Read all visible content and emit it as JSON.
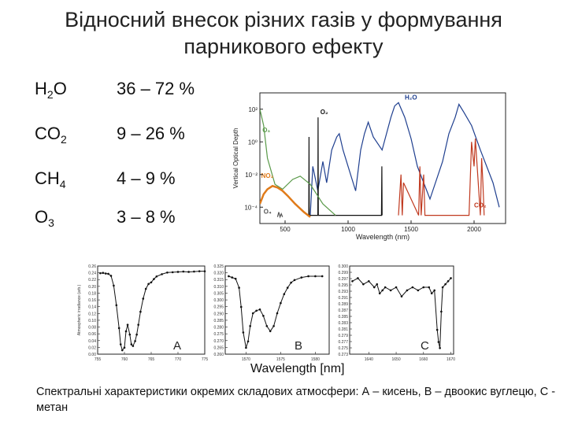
{
  "title": {
    "line1": "Відносний внесок різних газів у формування",
    "line2": "парникового ефекту"
  },
  "gases": [
    {
      "name": "H",
      "sub": "2",
      "tail": "O",
      "range": "36 – 72 %"
    },
    {
      "name": "CO",
      "sub": "2",
      "tail": "",
      "range": "9 – 26 %"
    },
    {
      "name": "CH",
      "sub": "4",
      "tail": "",
      "range": "4 – 9 %"
    },
    {
      "name": "O",
      "sub": "3",
      "tail": "",
      "range": "3 – 8 %"
    }
  ],
  "caption": "Спектральні характеристики окремих складових атмосфери: А – кисень, В – двоокис вуглецю, С - метан",
  "chart_data": [
    {
      "type": "line",
      "xlabel": "Wavelength (nm)",
      "ylabel": "Vertical Optical Depth",
      "xticks": [
        "500",
        "1000",
        "1500",
        "2000"
      ],
      "yticks": [
        "10²",
        "10⁰",
        "10⁻²",
        "10⁻⁴"
      ],
      "xlim": [
        300,
        2250
      ],
      "log_y": true,
      "ylim": [
        -5,
        3
      ],
      "series": [
        {
          "name": "H₂O",
          "color": "#1f3f8f",
          "x": [
            700,
            720,
            760,
            800,
            830,
            870,
            910,
            930,
            960,
            1000,
            1060,
            1100,
            1130,
            1160,
            1200,
            1270,
            1340,
            1370,
            1400,
            1450,
            1500,
            1550,
            1650,
            1750,
            1800,
            1850,
            1880,
            1920,
            1980,
            2050,
            2150,
            2200
          ],
          "y": [
            -4.5,
            -1.5,
            -3,
            -1.2,
            -2.5,
            -0.5,
            0.3,
            0.5,
            -0.5,
            -1.5,
            -3,
            -0.5,
            0.5,
            1.2,
            0.3,
            -0.5,
            1.5,
            2.2,
            2.4,
            1.5,
            0.2,
            -1.5,
            -3.5,
            -1.2,
            0.5,
            1.5,
            2.3,
            1.8,
            1.0,
            -0.5,
            -2.5,
            -4
          ]
        },
        {
          "name": "O₂",
          "color": "#111111",
          "x": [
            688,
            690,
            692,
            760,
            762,
            764,
            1265,
            1268,
            1270
          ],
          "y": [
            -4.5,
            0.3,
            -4.5,
            -4.5,
            1.5,
            -4.5,
            -4.5,
            -1.5,
            -4.5
          ]
        },
        {
          "name": "O₃",
          "color": "#5a9a4a",
          "x": [
            300,
            330,
            360,
            420,
            480,
            560,
            620,
            700,
            800,
            900
          ],
          "y": [
            2.0,
            1.0,
            -1.0,
            -2.6,
            -2.9,
            -2.3,
            -2.1,
            -2.6,
            -3.8,
            -4.5
          ]
        },
        {
          "name": "NO₂",
          "color": "#e07b1a",
          "x": [
            300,
            330,
            360,
            400,
            440,
            480,
            520,
            580,
            650,
            700
          ],
          "y": [
            -3.8,
            -3.2,
            -2.9,
            -2.7,
            -2.8,
            -3.0,
            -3.3,
            -3.8,
            -4.3,
            -4.6
          ]
        },
        {
          "name": "CO₂",
          "color": "#c0391f",
          "x": [
            1400,
            1420,
            1430,
            1440,
            1560,
            1570,
            1580,
            1600,
            1610,
            1960,
            1980,
            2000,
            2010,
            2050,
            2060,
            2070,
            2080
          ],
          "y": [
            -4.5,
            -2.0,
            -4.5,
            -2.5,
            -4.5,
            -1.5,
            -4.5,
            -2.0,
            -4.5,
            -4.5,
            0.0,
            -1.5,
            0.2,
            -4.5,
            -1.0,
            -2.5,
            -4.5
          ]
        },
        {
          "name": "O₄",
          "color": "#555555",
          "x": [
            440,
            450,
            460,
            470,
            480
          ],
          "y": [
            -4.6,
            -4.3,
            -4.6,
            -4.4,
            -4.6
          ]
        }
      ]
    },
    {
      "type": "scatter",
      "label": "A",
      "xticks": [
        "755",
        "760",
        "765",
        "770",
        "775"
      ],
      "yticks": [
        "0.26",
        "0.24",
        "0.22",
        "0.20",
        "0.18",
        "0.16",
        "0.14",
        "0.12",
        "0.10",
        "0.08",
        "0.06",
        "0.04",
        "0.02",
        "0.00"
      ],
      "ylabel": "Atmospheric irradiance (arb.)",
      "xlim": [
        755,
        775
      ],
      "ylim": [
        0.0,
        0.27
      ],
      "x": [
        755.5,
        756,
        756.5,
        757,
        757.5,
        758,
        758.5,
        759,
        759.3,
        759.6,
        760,
        760.3,
        760.6,
        761,
        761.3,
        761.6,
        762,
        762.3,
        762.6,
        763,
        763.5,
        764,
        764.5,
        765,
        765.5,
        766,
        767,
        768,
        769,
        770,
        771,
        772,
        773,
        774,
        775
      ],
      "y": [
        0.248,
        0.249,
        0.247,
        0.246,
        0.24,
        0.21,
        0.15,
        0.08,
        0.03,
        0.012,
        0.02,
        0.07,
        0.09,
        0.06,
        0.03,
        0.025,
        0.04,
        0.06,
        0.09,
        0.13,
        0.17,
        0.2,
        0.215,
        0.22,
        0.23,
        0.238,
        0.245,
        0.25,
        0.251,
        0.252,
        0.253,
        0.252,
        0.253,
        0.254,
        0.254
      ]
    },
    {
      "type": "scatter",
      "label": "B",
      "xticks": [
        "1570",
        "1575",
        "1580"
      ],
      "yticks": [
        "0.325",
        "0.320",
        "0.315",
        "0.310",
        "0.305",
        "0.300",
        "0.295",
        "0.290",
        "0.285",
        "0.280",
        "0.275",
        "0.270",
        "0.265",
        "0.260"
      ],
      "xlim": [
        1567,
        1582
      ],
      "ylim": [
        0.258,
        0.327
      ],
      "x": [
        1567.5,
        1568,
        1568.5,
        1569,
        1569.3,
        1569.6,
        1570,
        1570.3,
        1570.6,
        1571,
        1571.5,
        1572,
        1572.5,
        1573,
        1573.5,
        1574,
        1574.5,
        1575,
        1575.5,
        1576,
        1576.5,
        1577,
        1578,
        1579,
        1580,
        1581
      ],
      "y": [
        0.319,
        0.318,
        0.317,
        0.31,
        0.295,
        0.275,
        0.263,
        0.268,
        0.28,
        0.29,
        0.292,
        0.293,
        0.288,
        0.28,
        0.276,
        0.28,
        0.29,
        0.298,
        0.305,
        0.31,
        0.314,
        0.316,
        0.318,
        0.319,
        0.319,
        0.319
      ]
    },
    {
      "type": "scatter",
      "label": "C",
      "xticks": [
        "1640",
        "1650",
        "1660",
        "1670"
      ],
      "yticks": [
        "0.300",
        "0.299",
        "0.297",
        "0.295",
        "0.293",
        "0.291",
        "0.289",
        "0.287",
        "0.285",
        "0.283",
        "0.281",
        "0.279",
        "0.277",
        "0.275",
        "0.273"
      ],
      "xlim": [
        1633,
        1671
      ],
      "ylim": [
        0.272,
        0.301
      ],
      "x": [
        1634,
        1636,
        1638,
        1640,
        1642,
        1643,
        1644,
        1645,
        1646,
        1648,
        1650,
        1652,
        1654,
        1656,
        1658,
        1660,
        1662,
        1663,
        1664,
        1665,
        1665.5,
        1666,
        1666.5,
        1667,
        1668,
        1669,
        1670
      ],
      "y": [
        0.296,
        0.297,
        0.295,
        0.296,
        0.294,
        0.295,
        0.292,
        0.293,
        0.294,
        0.293,
        0.294,
        0.291,
        0.293,
        0.294,
        0.293,
        0.294,
        0.294,
        0.292,
        0.293,
        0.28,
        0.276,
        0.274,
        0.286,
        0.294,
        0.295,
        0.296,
        0.297
      ]
    }
  ],
  "shared_xlabel": "Wavelength [nm]",
  "colors": {
    "axis": "#222222",
    "plot_bg": "#ffffff",
    "scatter": "#111111"
  }
}
